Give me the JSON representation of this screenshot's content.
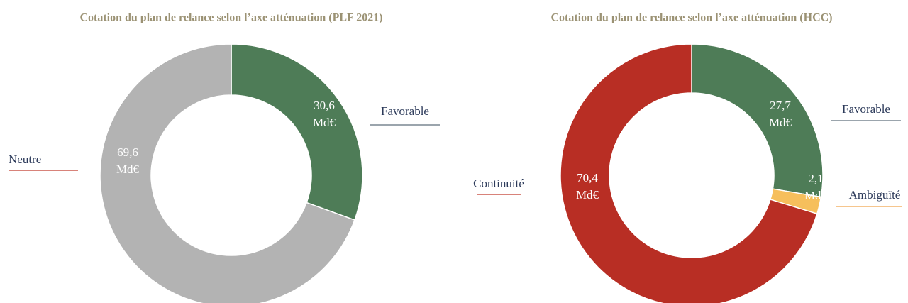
{
  "chart_data": [
    {
      "type": "donut",
      "title": "Cotation du plan de relance selon l’axe atténuation (PLF 2021)",
      "categories": [
        "Favorable",
        "Neutre"
      ],
      "values": [
        30.6,
        69.6
      ],
      "value_labels": [
        "30,6 Md€",
        "69,6 Md€"
      ],
      "colors": [
        "#4e7c57",
        "#b3b3b3"
      ],
      "label_line_colors": [
        "#5f6f7c",
        "#c0392b"
      ]
    },
    {
      "type": "donut",
      "title": "Cotation du plan de relance selon l’axe atténuation (HCC)",
      "categories": [
        "Favorable",
        "Ambiguïté",
        "Continuité"
      ],
      "values": [
        27.7,
        2.1,
        70.4
      ],
      "value_labels": [
        "27,7 Md€",
        "2,1 Md€",
        "70,4 Md€"
      ],
      "colors": [
        "#4e7c57",
        "#f6bf5c",
        "#b82e24"
      ],
      "label_line_colors": [
        "#5f6f7c",
        "#f0a34a",
        "#c0392b"
      ]
    }
  ]
}
